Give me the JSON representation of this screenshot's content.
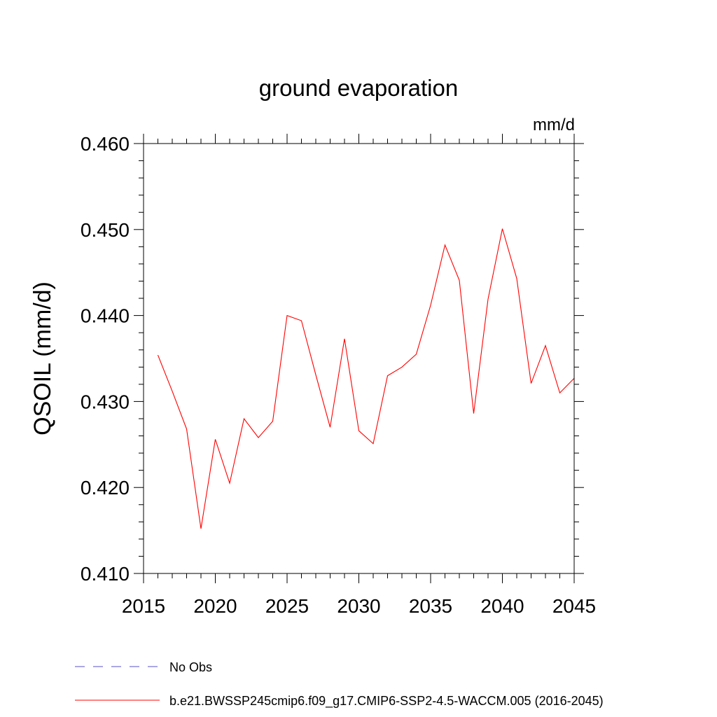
{
  "chart_data": {
    "type": "line",
    "title": "ground evaporation",
    "units": "mm/d",
    "ylabel": "QSOIL  (mm/d)",
    "xlabel": "",
    "xlim": [
      2015,
      2045
    ],
    "ylim": [
      0.41,
      0.46
    ],
    "x_ticks": [
      2015,
      2020,
      2025,
      2030,
      2035,
      2040,
      2045
    ],
    "y_ticks": [
      0.41,
      0.42,
      0.43,
      0.44,
      0.45,
      0.46
    ],
    "y_tick_labels": [
      "0.410",
      "0.420",
      "0.430",
      "0.440",
      "0.450",
      "0.460"
    ],
    "grid": false,
    "series": [
      {
        "name": "b.e21.BWSSP245cmip6.f09_g17.CMIP6-SSP2-4.5-WACCM.005 (2016-2045)",
        "color": "#ff0000",
        "style": "solid",
        "x": [
          2016,
          2017,
          2018,
          2019,
          2020,
          2021,
          2022,
          2023,
          2024,
          2025,
          2026,
          2027,
          2028,
          2029,
          2030,
          2031,
          2032,
          2033,
          2034,
          2035,
          2036,
          2037,
          2038,
          2039,
          2040,
          2041,
          2042,
          2043,
          2044,
          2045
        ],
        "values": [
          0.4354,
          0.4312,
          0.4268,
          0.4152,
          0.4256,
          0.4205,
          0.428,
          0.4258,
          0.4277,
          0.44,
          0.4394,
          0.4331,
          0.427,
          0.4373,
          0.4266,
          0.4251,
          0.433,
          0.434,
          0.4355,
          0.4412,
          0.4482,
          0.4441,
          0.4286,
          0.4419,
          0.4501,
          0.4443,
          0.4321,
          0.4365,
          0.431,
          0.4327
        ]
      }
    ],
    "legend": [
      {
        "label": "No Obs",
        "color": "#5a4fc8",
        "style": "dashed"
      },
      {
        "label": "b.e21.BWSSP245cmip6.f09_g17.CMIP6-SSP2-4.5-WACCM.005 (2016-2045)",
        "color": "#ff0000",
        "style": "solid"
      }
    ],
    "legend_position": "bottom"
  }
}
